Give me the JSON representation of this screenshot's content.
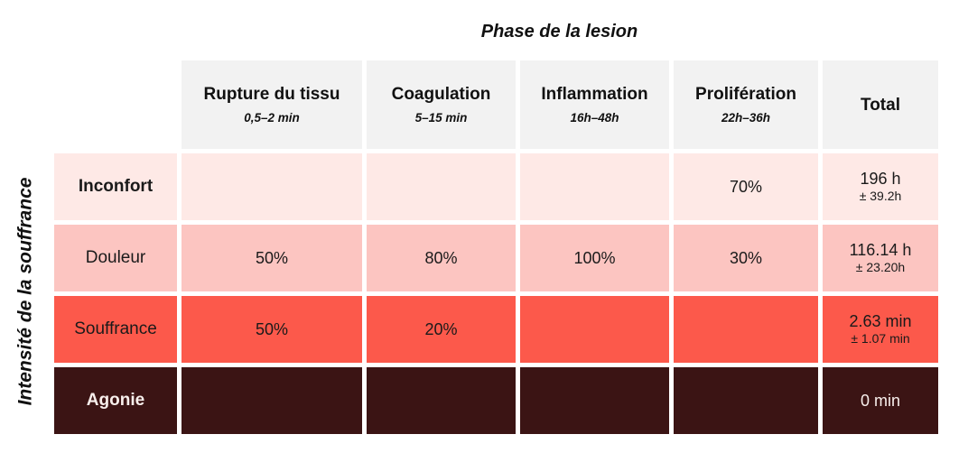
{
  "title": "Phase de la lesion",
  "y_axis_label": "Intensité de la souffrance",
  "table": {
    "header_bg": "#f2f2f2",
    "columns": [
      {
        "label": "Rupture du tissu",
        "range": "0,5–2 min"
      },
      {
        "label": "Coagulation",
        "range": "5–15 min"
      },
      {
        "label": "Inflammation",
        "range": "16h–48h"
      },
      {
        "label": "Prolifération",
        "range": "22h–36h"
      },
      {
        "label": "Total",
        "range": ""
      }
    ],
    "rows": [
      {
        "label": "Inconfort",
        "cells": [
          "",
          "",
          "",
          "70%"
        ],
        "total": "196 h",
        "total_error": "± 39.2h",
        "color": "#fee9e6",
        "text_color": "#1a1a1a"
      },
      {
        "label": "Douleur",
        "cells": [
          "50%",
          "80%",
          "100%",
          "30%"
        ],
        "total": "116.14 h",
        "total_error": "± 23.20h",
        "color": "#fcc5c1",
        "text_color": "#1a1a1a"
      },
      {
        "label": "Souffrance",
        "cells": [
          "50%",
          "20%",
          "",
          ""
        ],
        "total": "2.63 min",
        "total_error": "± 1.07 min",
        "color": "#fc594b",
        "text_color": "#1a1a1a"
      },
      {
        "label": "Agonie",
        "cells": [
          "",
          "",
          "",
          ""
        ],
        "total": "0 min",
        "total_error": "",
        "color": "#3b1414",
        "text_color": "#f8efec"
      }
    ]
  },
  "chart_data": {
    "type": "heatmap",
    "title": "Phase de la lesion",
    "xlabel": "Phase de la lesion",
    "ylabel": "Intensité de la souffrance",
    "columns": [
      "Rupture du tissu",
      "Coagulation",
      "Inflammation",
      "Prolifération"
    ],
    "column_time_ranges": [
      "0,5–2 min",
      "5–15 min",
      "16h–48h",
      "22h–36h"
    ],
    "row_labels": [
      "Inconfort",
      "Douleur",
      "Souffrance",
      "Agonie"
    ],
    "values_percent": [
      [
        null,
        null,
        null,
        70
      ],
      [
        50,
        80,
        100,
        30
      ],
      [
        50,
        20,
        null,
        null
      ],
      [
        null,
        null,
        null,
        null
      ]
    ],
    "totals": [
      {
        "value": "196 h",
        "error": "± 39.2h"
      },
      {
        "value": "116.14 h",
        "error": "± 23.20h"
      },
      {
        "value": "2.63 min",
        "error": "± 1.07 min"
      },
      {
        "value": "0 min",
        "error": ""
      }
    ],
    "row_colors": [
      "#fee9e6",
      "#fcc5c1",
      "#fc594b",
      "#3b1414"
    ],
    "legend_position": "none",
    "grid": false
  }
}
